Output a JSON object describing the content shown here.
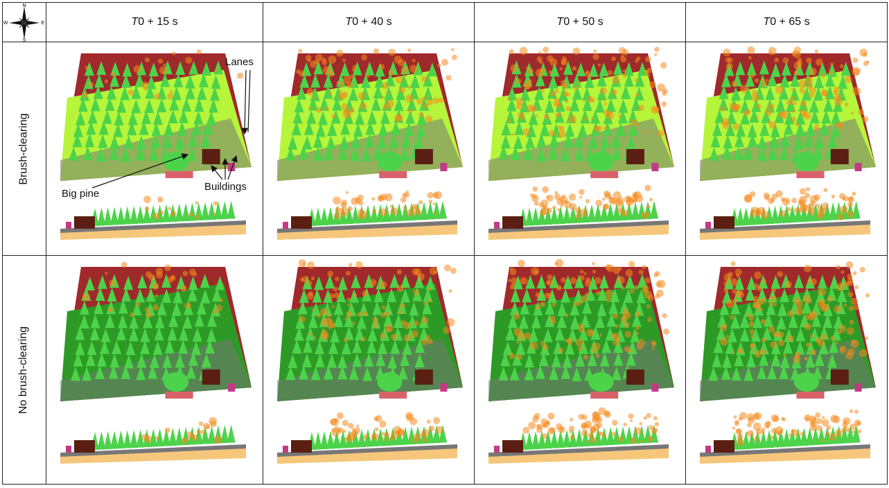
{
  "compass": {
    "n": "N",
    "s": "S",
    "e": "E",
    "w": "W"
  },
  "columns": [
    {
      "italic": "T",
      "rest": "0 + 15 s"
    },
    {
      "italic": "T",
      "rest": "0 + 40 s"
    },
    {
      "italic": "T",
      "rest": "0 + 50 s"
    },
    {
      "italic": "T",
      "rest": "0 + 65 s"
    }
  ],
  "rows": [
    {
      "label": "Brush-clearing",
      "fire": [
        0.15,
        0.55,
        0.8,
        0.7
      ]
    },
    {
      "label": "No brush-clearing",
      "fire": [
        0.2,
        0.6,
        0.85,
        0.9
      ]
    }
  ],
  "annotations": {
    "lanes": "Lanes",
    "big_pine": "Big pine",
    "buildings": "Buildings"
  },
  "colors": {
    "ground_dark": "#a0292b",
    "grass_light": "#b6f53a",
    "grass_dark": "#2e9a26",
    "tree": "#4cd34a",
    "lane": "#777777",
    "fire": "#f58a1e",
    "building": "#5a1f12",
    "soil": "#f6c77a"
  }
}
